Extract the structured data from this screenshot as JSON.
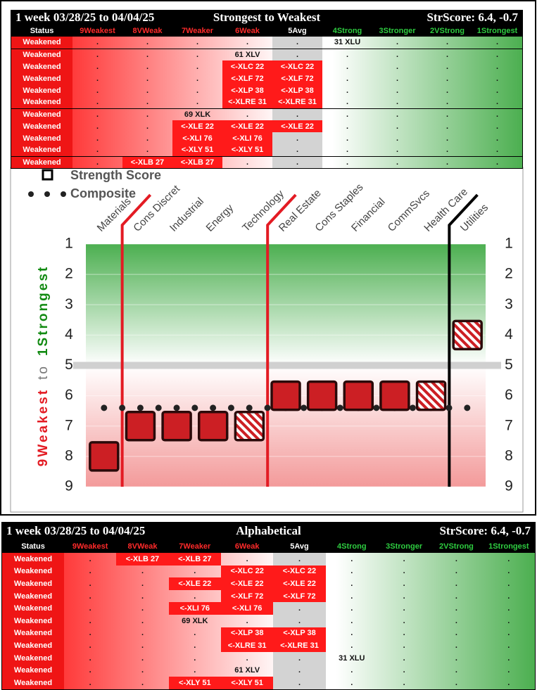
{
  "top_table": {
    "title_left": "1 week 03/28/25 to 04/04/25",
    "title_center": "Strongest to Weakest",
    "title_right": "StrScore: 6.4, -0.7",
    "columns": [
      "Status",
      "9Weakest",
      "8VWeak",
      "7Weaker",
      "6Weak",
      "5Avg",
      "4Strong",
      "3Stronger",
      "2VStrong",
      "1Strongest"
    ],
    "header_colors": [
      "#ffffff",
      "#ff2a2a",
      "#ff2a2a",
      "#ff2a2a",
      "#ff2a2a",
      "#ffffff",
      "#2ecc40",
      "#2ecc40",
      "#2ecc40",
      "#2ecc40"
    ],
    "rows": [
      [
        "Weakened",
        ".",
        ".",
        ".",
        ".",
        ".",
        "31 XLU",
        ".",
        ".",
        "."
      ],
      [
        "Weakened",
        ".",
        ".",
        ".",
        "61 XLV",
        ".",
        ".",
        ".",
        ".",
        "."
      ],
      [
        "Weakened",
        ".",
        ".",
        ".",
        "<-XLC 22",
        "<-XLC 22",
        ".",
        ".",
        ".",
        "."
      ],
      [
        "Weakened",
        ".",
        ".",
        ".",
        "<-XLF 72",
        "<-XLF 72",
        ".",
        ".",
        ".",
        "."
      ],
      [
        "Weakened",
        ".",
        ".",
        ".",
        "<-XLP 38",
        "<-XLP 38",
        ".",
        ".",
        ".",
        "."
      ],
      [
        "Weakened",
        ".",
        ".",
        ".",
        "<-XLRE 31",
        "<-XLRE 31",
        ".",
        ".",
        ".",
        "."
      ],
      [
        "Weakened",
        ".",
        ".",
        "69 XLK",
        ".",
        ".",
        ".",
        ".",
        ".",
        "."
      ],
      [
        "Weakened",
        ".",
        ".",
        "<-XLE 22",
        "<-XLE 22",
        "<-XLE 22",
        ".",
        ".",
        ".",
        "."
      ],
      [
        "Weakened",
        ".",
        ".",
        "<-XLI 76",
        "<-XLI 76",
        ".",
        ".",
        ".",
        ".",
        "."
      ],
      [
        "Weakened",
        ".",
        ".",
        "<-XLY 51",
        "<-XLY 51",
        ".",
        ".",
        ".",
        ".",
        "."
      ],
      [
        "Weakened",
        ".",
        "<-XLB 27",
        "<-XLB 27",
        ".",
        ".",
        ".",
        ".",
        ".",
        "."
      ]
    ]
  },
  "chart_data": {
    "type": "scatter",
    "categories": [
      "Materials",
      "Cons Discret",
      "Industrial",
      "Energy",
      "Technology",
      "Real Estate",
      "Cons Staples",
      "Financial",
      "CommSvcs",
      "Health Care",
      "Utilities"
    ],
    "series": [
      {
        "name": "Strength Score",
        "color": "#cc1f24",
        "values": [
          8,
          7,
          7,
          7,
          7,
          6,
          6,
          6,
          6,
          6,
          4
        ],
        "patterns": [
          "solid",
          "solid",
          "solid",
          "solid",
          "hatch",
          "solid",
          "solid",
          "solid",
          "solid",
          "hatch",
          "hatch"
        ]
      },
      {
        "name": "Composite",
        "color": "#222222",
        "values": [
          6.4,
          6.4,
          6.4,
          6.4,
          6.4,
          6.4,
          6.4,
          6.4,
          6.4,
          6.4,
          6.4
        ]
      }
    ],
    "y_label_parts": [
      "9Weakest",
      "to",
      "1Strongest"
    ],
    "y_label_colors": [
      "#e31b23",
      "#777777",
      "#128a12"
    ],
    "ylim": [
      9,
      1
    ],
    "yticks": [
      1,
      2,
      3,
      4,
      5,
      6,
      7,
      8,
      9
    ],
    "hline": 5,
    "grid": true
  },
  "bottom_table": {
    "title_left": "1 week 03/28/25 to 04/04/25",
    "title_center": "Alphabetical",
    "title_right": "StrScore: 6.4, -0.7",
    "columns": [
      "Status",
      "9Weakest",
      "8VWeak",
      "7Weaker",
      "6Weak",
      "5Avg",
      "4Strong",
      "3Stronger",
      "2VStrong",
      "1Strongest"
    ],
    "header_colors": [
      "#ffffff",
      "#ff2a2a",
      "#ff2a2a",
      "#ff2a2a",
      "#ff2a2a",
      "#ffffff",
      "#2ecc40",
      "#2ecc40",
      "#2ecc40",
      "#2ecc40"
    ],
    "rows": [
      [
        "Weakened",
        ".",
        "<-XLB 27",
        "<-XLB 27",
        ".",
        ".",
        ".",
        ".",
        ".",
        "."
      ],
      [
        "Weakened",
        ".",
        ".",
        ".",
        "<-XLC 22",
        "<-XLC 22",
        ".",
        ".",
        ".",
        "."
      ],
      [
        "Weakened",
        ".",
        ".",
        "<-XLE 22",
        "<-XLE 22",
        "<-XLE 22",
        ".",
        ".",
        ".",
        "."
      ],
      [
        "Weakened",
        ".",
        ".",
        ".",
        "<-XLF 72",
        "<-XLF 72",
        ".",
        ".",
        ".",
        "."
      ],
      [
        "Weakened",
        ".",
        ".",
        "<-XLI 76",
        "<-XLI 76",
        ".",
        ".",
        ".",
        ".",
        "."
      ],
      [
        "Weakened",
        ".",
        ".",
        "69 XLK",
        ".",
        ".",
        ".",
        ".",
        ".",
        "."
      ],
      [
        "Weakened",
        ".",
        ".",
        ".",
        "<-XLP 38",
        "<-XLP 38",
        ".",
        ".",
        ".",
        "."
      ],
      [
        "Weakened",
        ".",
        ".",
        ".",
        "<-XLRE 31",
        "<-XLRE 31",
        ".",
        ".",
        ".",
        "."
      ],
      [
        "Weakened",
        ".",
        ".",
        ".",
        ".",
        ".",
        "31 XLU",
        ".",
        ".",
        "."
      ],
      [
        "Weakened",
        ".",
        ".",
        ".",
        "61 XLV",
        ".",
        ".",
        ".",
        ".",
        "."
      ],
      [
        "Weakened",
        ".",
        ".",
        "<-XLY 51",
        "<-XLY 51",
        ".",
        ".",
        ".",
        ".",
        "."
      ]
    ]
  }
}
